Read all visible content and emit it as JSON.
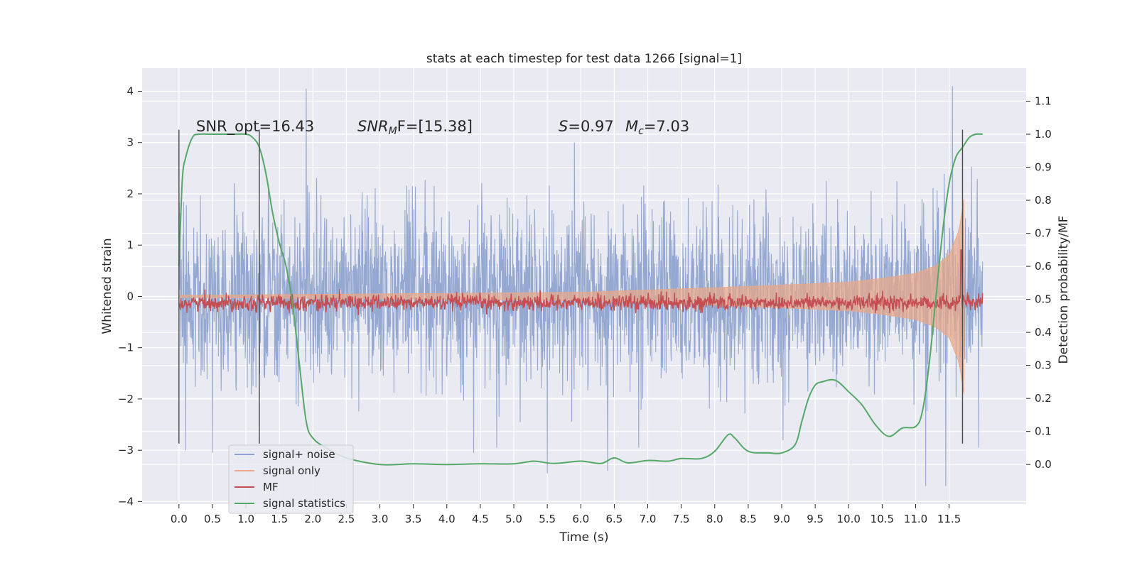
{
  "chart_data": {
    "type": "line",
    "title": "stats at each timestep for test data 1266 [signal=1]",
    "xlabel": "Time (s)",
    "ylabel": "Whitened strain",
    "y2label": "Detection probability/MF",
    "xlim": [
      -0.55,
      12.65
    ],
    "ylim": [
      -4.05,
      4.45
    ],
    "y2lim": [
      -0.12,
      1.2
    ],
    "x_ticks": [
      "0.0",
      "0.5",
      "1.0",
      "1.5",
      "2.0",
      "2.5",
      "3.0",
      "3.5",
      "4.0",
      "4.5",
      "5.0",
      "5.5",
      "6.0",
      "6.5",
      "7.0",
      "7.5",
      "8.0",
      "8.5",
      "9.0",
      "9.5",
      "10.0",
      "10.5",
      "11.0",
      "11.5"
    ],
    "y_ticks": [
      "4",
      "3",
      "2",
      "1",
      "0",
      "−1",
      "−2",
      "−3",
      "−4"
    ],
    "y2_ticks": [
      "1.1",
      "1.0",
      "0.9",
      "0.8",
      "0.7",
      "0.6",
      "0.5",
      "0.4",
      "0.3",
      "0.2",
      "0.1",
      "0.0"
    ],
    "grid": true,
    "legend_position": "bottom-left",
    "annotations": {
      "snr_opt": "SNR_opt=16.43",
      "snr_mf_prefix": "SNR",
      "snr_mf_sub": "M",
      "snr_mf_rest": "F=[15.38]",
      "s_sym": "S",
      "s_rest": "=0.97",
      "mc_sym": "M",
      "mc_sub": "c",
      "mc_rest": "=7.03"
    },
    "vertical_markers": [
      0.0,
      1.2,
      11.7
    ],
    "series": [
      {
        "name": "signal+ noise",
        "color": "#8fa4cf",
        "axis": "left",
        "amplitude_std": 0.85,
        "x_range": [
          0.0,
          12.0
        ],
        "peaks": [
          [
            1.9,
            4.05
          ],
          [
            11.55,
            4.1
          ],
          [
            11.15,
            -3.7
          ],
          [
            11.45,
            -3.7
          ],
          [
            5.5,
            -3.45
          ],
          [
            0.1,
            -3.0
          ],
          [
            0.5,
            -3.05
          ],
          [
            4.4,
            -3.05
          ],
          [
            6.4,
            -3.4
          ]
        ]
      },
      {
        "name": "signal only",
        "color": "#e8a889",
        "axis": "left",
        "envelope": [
          [
            0.0,
            0.02
          ],
          [
            6.0,
            0.08
          ],
          [
            8.0,
            0.17
          ],
          [
            9.0,
            0.22
          ],
          [
            10.0,
            0.28
          ],
          [
            10.5,
            0.35
          ],
          [
            11.0,
            0.45
          ],
          [
            11.3,
            0.6
          ],
          [
            11.5,
            0.8
          ],
          [
            11.65,
            1.3
          ],
          [
            11.72,
            1.9
          ]
        ],
        "x_range": [
          0.0,
          11.72
        ]
      },
      {
        "name": "MF",
        "color": "#c44e52",
        "axis": "right",
        "level": 0.49,
        "noise": 0.012,
        "spike": [
          11.68,
          0.65
        ],
        "x_range": [
          0.0,
          12.0
        ]
      },
      {
        "name": "signal statistics",
        "color": "#55a868",
        "axis": "right",
        "x": [
          0.0,
          0.05,
          0.1,
          0.2,
          0.3,
          0.5,
          0.8,
          1.0,
          1.1,
          1.2,
          1.3,
          1.4,
          1.5,
          1.6,
          1.7,
          1.8,
          1.9,
          2.0,
          2.2,
          2.5,
          3.0,
          3.5,
          4.0,
          4.5,
          5.0,
          5.3,
          5.6,
          6.0,
          6.3,
          6.5,
          6.7,
          7.0,
          7.3,
          7.5,
          7.8,
          8.0,
          8.2,
          8.3,
          8.5,
          8.8,
          9.0,
          9.2,
          9.3,
          9.4,
          9.5,
          9.6,
          9.8,
          10.0,
          10.2,
          10.4,
          10.6,
          10.8,
          11.0,
          11.1,
          11.2,
          11.3,
          11.4,
          11.5,
          11.6,
          11.7,
          11.8,
          11.9,
          12.0
        ],
        "y": [
          0.6,
          0.86,
          0.93,
          0.99,
          1.0,
          1.0,
          1.0,
          1.0,
          0.99,
          0.96,
          0.88,
          0.76,
          0.67,
          0.6,
          0.48,
          0.3,
          0.13,
          0.08,
          0.05,
          0.02,
          0.0,
          0.002,
          0.0,
          0.002,
          0.002,
          0.01,
          0.003,
          0.01,
          0.003,
          0.02,
          0.005,
          0.012,
          0.01,
          0.018,
          0.018,
          0.04,
          0.09,
          0.08,
          0.04,
          0.035,
          0.035,
          0.06,
          0.13,
          0.2,
          0.24,
          0.25,
          0.255,
          0.22,
          0.18,
          0.12,
          0.085,
          0.11,
          0.115,
          0.16,
          0.3,
          0.5,
          0.7,
          0.85,
          0.93,
          0.96,
          0.99,
          1.0,
          1.0
        ]
      }
    ]
  }
}
